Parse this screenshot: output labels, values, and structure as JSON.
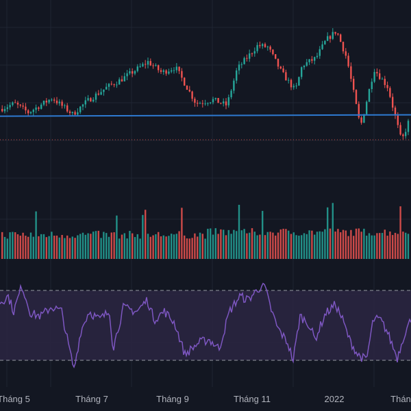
{
  "colors": {
    "background": "#131722",
    "grid": "#1f2433",
    "up": "#26a69a",
    "down": "#ef5350",
    "reference_line": "#2e7ad1",
    "dotted_line": "#c94a43",
    "rsi_line": "#7e57c2",
    "rsi_band": "#2a2540",
    "rsi_bound_lines": "#9598a1",
    "axis_text": "#b2b5be"
  },
  "x_axis": {
    "labels": [
      "Tháng 5",
      "Tháng 7",
      "Tháng 9",
      "Tháng 11",
      "2022",
      "Thán"
    ]
  },
  "chart_data": [
    {
      "type": "candlestick",
      "panel": "price",
      "y_range": [
        0,
        100
      ],
      "grid": true,
      "horizontal_line_level": 36,
      "dotted_line_level": 23,
      "close_anchors": [
        [
          0,
          40
        ],
        [
          20,
          43
        ],
        [
          40,
          38
        ],
        [
          75,
          46
        ],
        [
          105,
          37
        ],
        [
          125,
          44
        ],
        [
          155,
          52
        ],
        [
          175,
          56
        ],
        [
          215,
          66
        ],
        [
          235,
          60
        ],
        [
          255,
          63
        ],
        [
          285,
          43
        ],
        [
          310,
          45
        ],
        [
          330,
          42
        ],
        [
          345,
          62
        ],
        [
          375,
          75
        ],
        [
          390,
          74
        ],
        [
          410,
          60
        ],
        [
          430,
          50
        ],
        [
          440,
          64
        ],
        [
          460,
          68
        ],
        [
          475,
          78
        ],
        [
          490,
          83
        ],
        [
          505,
          68
        ],
        [
          525,
          30
        ],
        [
          545,
          62
        ],
        [
          565,
          52
        ],
        [
          585,
          22
        ],
        [
          600,
          38
        ]
      ]
    },
    {
      "type": "bar",
      "panel": "volume",
      "y_range": [
        0,
        100
      ],
      "base_level": 30,
      "colored_by_candle_direction": true
    },
    {
      "type": "line",
      "panel": "rsi",
      "y_range": [
        0,
        100
      ],
      "band": [
        20,
        80
      ],
      "dashed_levels": [
        20,
        80
      ],
      "series_anchors": [
        [
          0,
          70
        ],
        [
          12,
          75
        ],
        [
          20,
          62
        ],
        [
          32,
          84
        ],
        [
          45,
          60
        ],
        [
          60,
          58
        ],
        [
          75,
          66
        ],
        [
          90,
          62
        ],
        [
          100,
          33
        ],
        [
          108,
          12
        ],
        [
          118,
          45
        ],
        [
          130,
          62
        ],
        [
          145,
          55
        ],
        [
          160,
          62
        ],
        [
          165,
          30
        ],
        [
          180,
          65
        ],
        [
          200,
          62
        ],
        [
          215,
          72
        ],
        [
          225,
          55
        ],
        [
          240,
          62
        ],
        [
          255,
          52
        ],
        [
          270,
          25
        ],
        [
          290,
          35
        ],
        [
          305,
          38
        ],
        [
          320,
          30
        ],
        [
          335,
          62
        ],
        [
          350,
          75
        ],
        [
          362,
          72
        ],
        [
          375,
          80
        ],
        [
          385,
          86
        ],
        [
          395,
          65
        ],
        [
          405,
          48
        ],
        [
          420,
          35
        ],
        [
          428,
          20
        ],
        [
          438,
          58
        ],
        [
          450,
          52
        ],
        [
          460,
          38
        ],
        [
          475,
          60
        ],
        [
          490,
          68
        ],
        [
          500,
          55
        ],
        [
          510,
          38
        ],
        [
          522,
          25
        ],
        [
          535,
          20
        ],
        [
          545,
          55
        ],
        [
          555,
          55
        ],
        [
          565,
          45
        ],
        [
          580,
          22
        ],
        [
          590,
          42
        ],
        [
          600,
          55
        ]
      ]
    }
  ]
}
